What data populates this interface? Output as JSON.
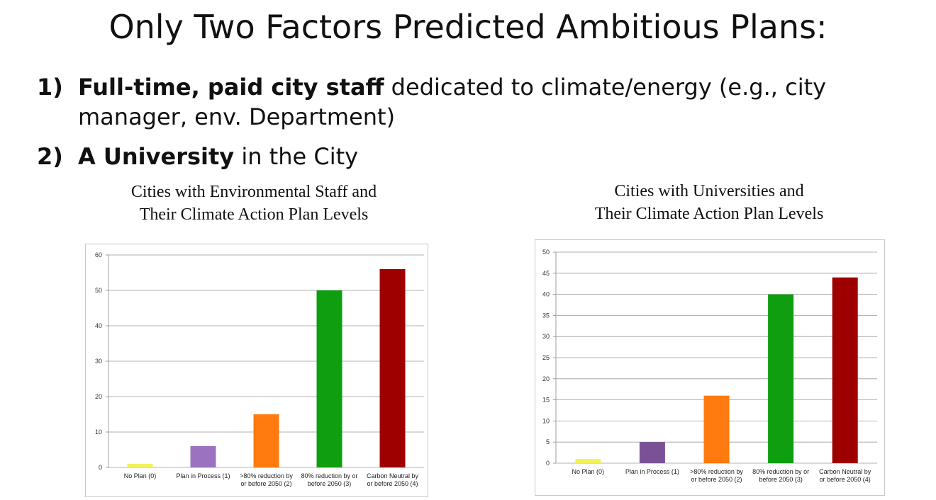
{
  "slide": {
    "title": "Only Two Factors Predicted Ambitious Plans:",
    "points": [
      {
        "num": "1)",
        "bold": "Full-time, paid city staff",
        "rest": " dedicated to climate/energy (e.g., city manager, env. Department)"
      },
      {
        "num": "2)",
        "bold": "A University",
        "rest": " in the City"
      }
    ]
  },
  "chart_data": [
    {
      "type": "bar",
      "title_lines": [
        "Cities with Environmental Staff and",
        "Their Climate Action Plan Levels"
      ],
      "categories": [
        [
          "No Plan (0)"
        ],
        [
          "Plan in Process (1)"
        ],
        [
          ">80% reduction by",
          "or before 2050 (2)"
        ],
        [
          "80% reduction by or",
          "before 2050 (3)"
        ],
        [
          "Carbon Neutral by",
          "or before 2050 (4)"
        ]
      ],
      "values": [
        1,
        6,
        15,
        50,
        56
      ],
      "colors": [
        "#f2f25a",
        "#9b72c0",
        "#ff7a0f",
        "#0f9e0f",
        "#9e0000"
      ],
      "ylim": [
        0,
        60
      ],
      "yticks": [
        0,
        10,
        20,
        30,
        40,
        50,
        60
      ],
      "grid": true,
      "legend": "none"
    },
    {
      "type": "bar",
      "title_lines": [
        "Cities with Universities and",
        "Their Climate Action Plan Levels"
      ],
      "categories": [
        [
          "No Plan (0)"
        ],
        [
          "Plan in Process (1)"
        ],
        [
          ">80% reduction by",
          "or before 2050 (2)"
        ],
        [
          "80% reduction by or",
          "before 2050 (3)"
        ],
        [
          "Carbon Neutral by",
          "or before 2050 (4)"
        ]
      ],
      "values": [
        1,
        5,
        16,
        40,
        44
      ],
      "colors": [
        "#f2f25a",
        "#7a5196",
        "#ff7a0f",
        "#0f9e0f",
        "#9e0000"
      ],
      "ylim": [
        0,
        50
      ],
      "yticks": [
        0,
        5,
        10,
        15,
        20,
        25,
        30,
        35,
        40,
        45,
        50
      ],
      "grid": true,
      "legend": "none"
    }
  ]
}
